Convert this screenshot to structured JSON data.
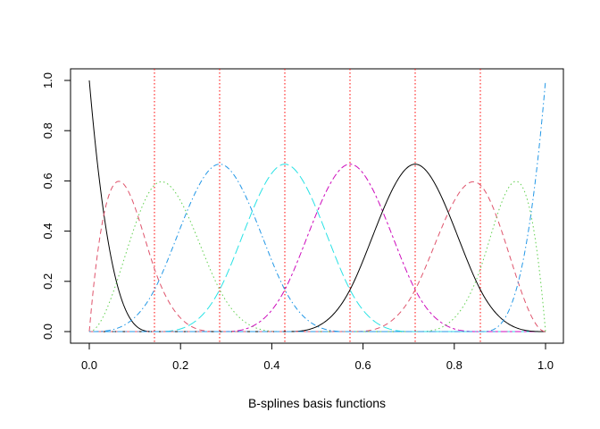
{
  "chart_data": {
    "type": "line",
    "title": "",
    "xlabel": "B-splines basis functions",
    "ylabel": "",
    "xlim": [
      0,
      1
    ],
    "ylim": [
      0,
      1
    ],
    "x_ticks": [
      "0.0",
      "0.2",
      "0.4",
      "0.6",
      "0.8",
      "1.0"
    ],
    "y_ticks": [
      "0.0",
      "0.2",
      "0.4",
      "0.6",
      "0.8",
      "1.0"
    ],
    "grid": false,
    "legend": "none",
    "spline_degree": 3,
    "interior_knots": [
      0.142857,
      0.285714,
      0.428571,
      0.571429,
      0.714286,
      0.857143
    ],
    "knot_line_color": "#FF0000",
    "series": [
      {
        "color": "#000000",
        "dash": "solid",
        "peak": [
          0.0,
          1.0
        ]
      },
      {
        "color": "#DF536B",
        "dash": "dashed",
        "peak": [
          0.064,
          0.595
        ]
      },
      {
        "color": "#61D04F",
        "dash": "dotted",
        "peak": [
          0.16,
          0.595
        ]
      },
      {
        "color": "#2297E6",
        "dash": "dotdash",
        "peak": [
          0.286,
          0.667
        ]
      },
      {
        "color": "#28E2E5",
        "dash": "longdash",
        "peak": [
          0.429,
          0.667
        ]
      },
      {
        "color": "#CD0BBC",
        "dash": "twodash",
        "peak": [
          0.571,
          0.667
        ]
      },
      {
        "color": "#000000",
        "dash": "solid",
        "peak": [
          0.714,
          0.667
        ]
      },
      {
        "color": "#DF536B",
        "dash": "dashed",
        "peak": [
          0.84,
          0.595
        ]
      },
      {
        "color": "#61D04F",
        "dash": "dotted",
        "peak": [
          0.936,
          0.595
        ]
      },
      {
        "color": "#2297E6",
        "dash": "dotdash",
        "peak": [
          1.0,
          1.0
        ]
      }
    ]
  }
}
